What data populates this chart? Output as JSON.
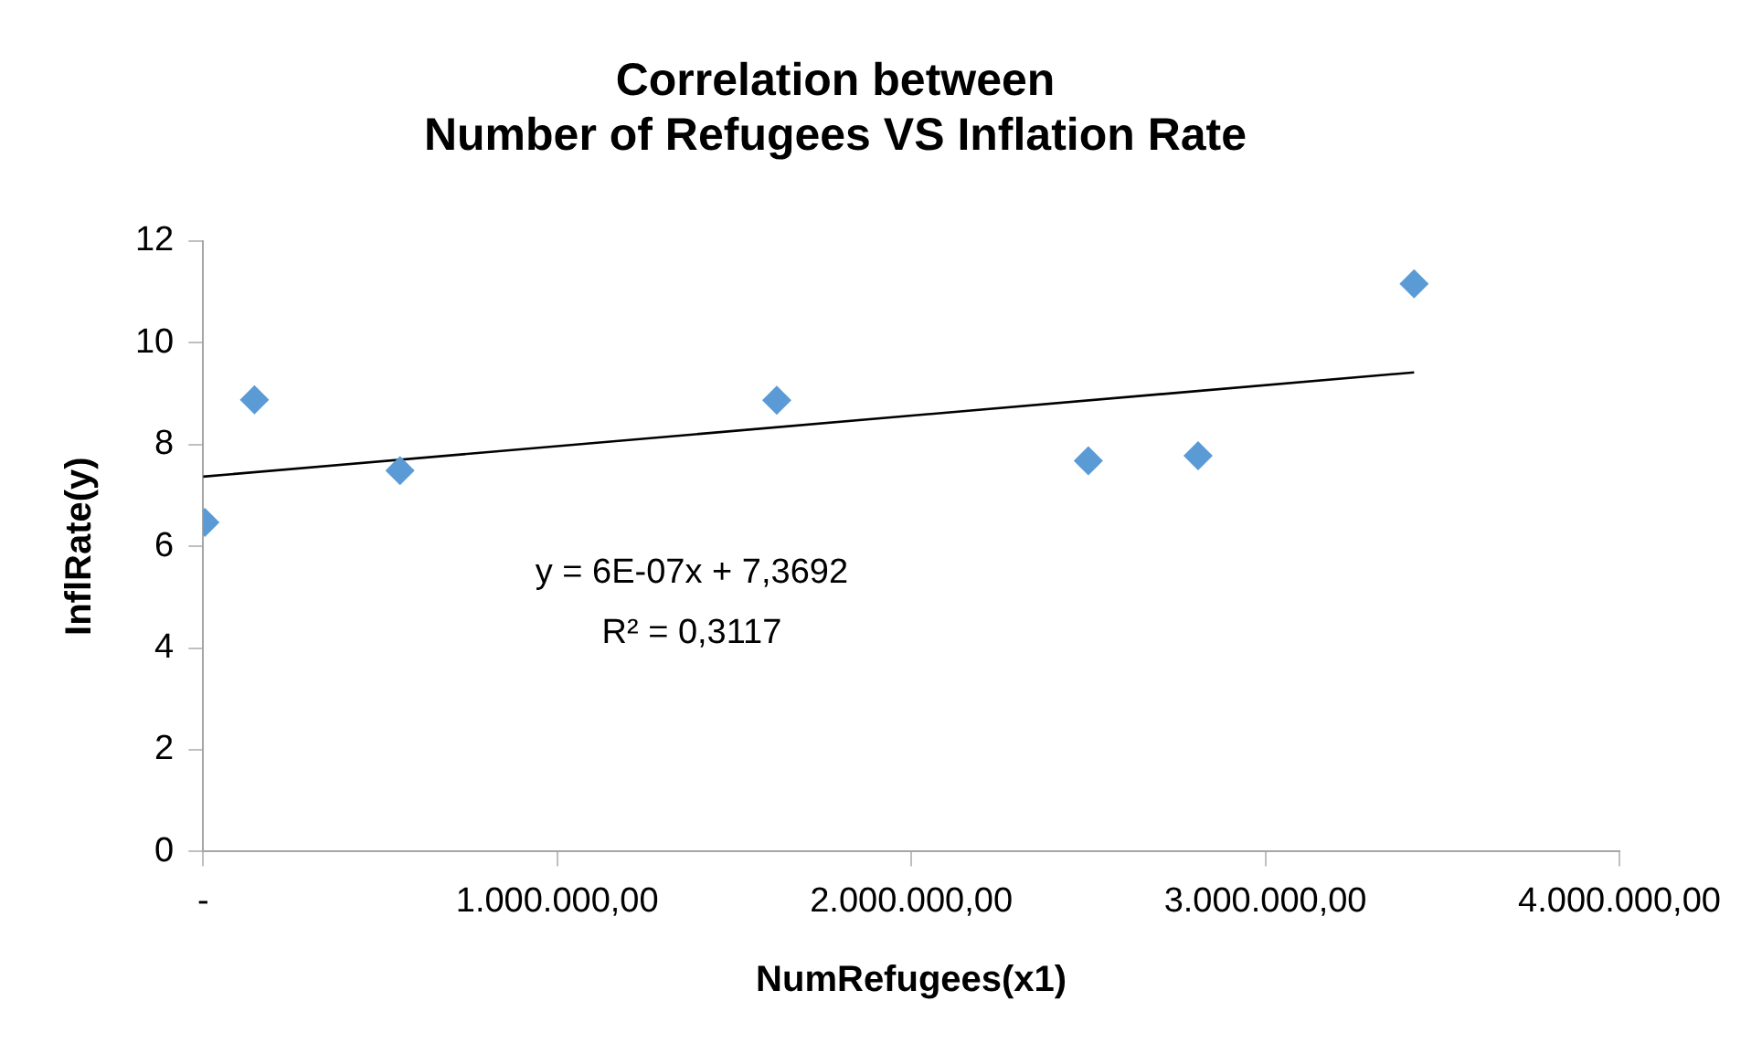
{
  "chart_data": {
    "type": "scatter",
    "title": "Correlation between\nNumber of Refugees VS Inflation Rate",
    "xlabel": "NumRefugees(x1)",
    "ylabel": "InflRate(y)",
    "series": [
      {
        "color": "#5b9bd5",
        "x": [
          5000,
          145000,
          556000,
          1620000,
          2500000,
          2810000,
          3420000
        ],
        "values": [
          6.47,
          8.88,
          7.49,
          8.87,
          7.68,
          7.78,
          11.16
        ]
      },
      {
        "type": "line",
        "color": "#000000",
        "marker": "none",
        "line_style": "solid",
        "x": [
          0,
          3420000
        ],
        "values": [
          7.37,
          9.42
        ]
      }
    ],
    "xlim": [
      0,
      4000000
    ],
    "xticks": [
      {
        "value": 0,
        "label": "-"
      },
      {
        "value": 1000000,
        "label": "1.000.000,00"
      },
      {
        "value": 2000000,
        "label": "2.000.000,00"
      },
      {
        "value": 3000000,
        "label": "3.000.000,00"
      },
      {
        "value": 4000000,
        "label": "4.000.000,00"
      }
    ],
    "ylim": [
      0,
      12
    ],
    "yticks": [
      0,
      2,
      4,
      6,
      8,
      10,
      12
    ],
    "grid": false,
    "legend": false,
    "marker": "diamond",
    "annotations": [
      "y = 6E-07x + 7,3692",
      "R² = 0,3117"
    ]
  }
}
